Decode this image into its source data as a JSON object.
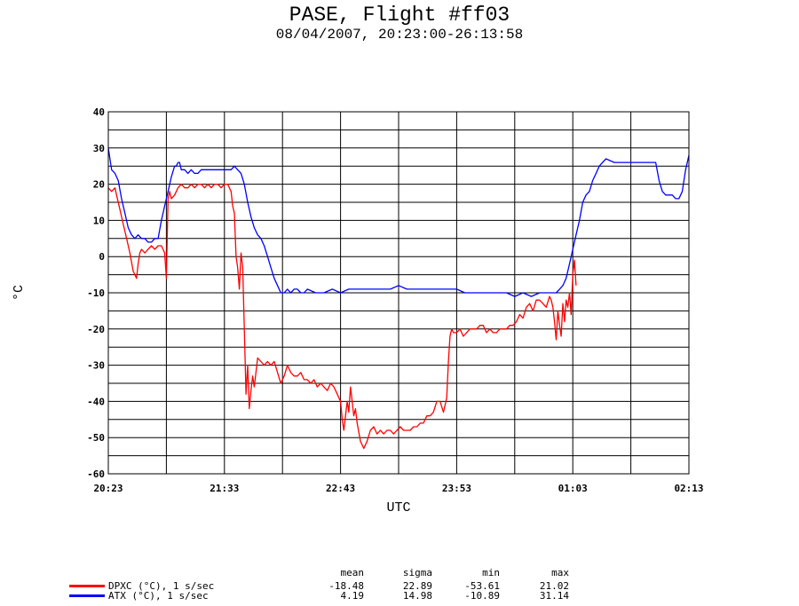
{
  "title": "PASE, Flight #ff03",
  "subtitle": "08/04/2007, 20:23:00-26:13:58",
  "chart_data": {
    "type": "line",
    "xlabel": "UTC",
    "ylabel": "°C",
    "x_tick_labels": [
      "20:23",
      "21:33",
      "22:43",
      "23:53",
      "01:03",
      "02:13"
    ],
    "x_tick_minutes": [
      0,
      70,
      140,
      210,
      280,
      350
    ],
    "xlim": [
      0,
      350
    ],
    "ylim": [
      -60,
      40
    ],
    "y_ticks": [
      40,
      30,
      20,
      10,
      0,
      -10,
      -20,
      -30,
      -40,
      -50,
      -60
    ],
    "grid": true,
    "series": [
      {
        "name": "DPXC (°C), 1 s/sec",
        "color": "#ff0000",
        "x": [
          0,
          2,
          4,
          5,
          7,
          9,
          11,
          13,
          15,
          17,
          18,
          19,
          20,
          22,
          24,
          26,
          28,
          30,
          32,
          33,
          34,
          35,
          36,
          37,
          38,
          40,
          42,
          44,
          46,
          48,
          50,
          52,
          54,
          56,
          58,
          60,
          62,
          64,
          66,
          68,
          70,
          72,
          74,
          75,
          76,
          77,
          78,
          79,
          80,
          81,
          82,
          83,
          84,
          85,
          86,
          87,
          88,
          89,
          90,
          92,
          94,
          96,
          98,
          100,
          102,
          104,
          106,
          108,
          110,
          112,
          114,
          116,
          118,
          120,
          122,
          124,
          126,
          128,
          130,
          132,
          134,
          136,
          138,
          140,
          141,
          142,
          143,
          144,
          145,
          146,
          147,
          148,
          149,
          150,
          152,
          154,
          156,
          158,
          160,
          162,
          164,
          166,
          168,
          170,
          172,
          174,
          176,
          178,
          180,
          182,
          184,
          186,
          188,
          190,
          192,
          194,
          196,
          198,
          200,
          202,
          204,
          205,
          206,
          207,
          208,
          210,
          212,
          214,
          216,
          218,
          220,
          222,
          224,
          226,
          228,
          230,
          232,
          234,
          236,
          238,
          240,
          242,
          244,
          246,
          248,
          250,
          252,
          254,
          256,
          258,
          260,
          262,
          264,
          266,
          267,
          268,
          269,
          270,
          271,
          272,
          273,
          274,
          275,
          276,
          277,
          278,
          279,
          280,
          281,
          282
        ],
        "y": [
          19,
          18,
          19,
          17,
          13,
          9,
          5,
          1,
          -4,
          -6,
          -2,
          1,
          2,
          1,
          2,
          3,
          2,
          3,
          3,
          2,
          1,
          -6,
          16,
          18,
          16,
          17,
          19,
          20,
          19,
          19,
          20,
          19,
          20,
          20,
          19,
          20,
          19,
          20,
          20,
          19,
          20,
          20,
          18,
          14,
          12,
          0,
          -3,
          -9,
          1,
          -3,
          -20,
          -38,
          -30,
          -42,
          -37,
          -33,
          -36,
          -32,
          -28,
          -29,
          -30,
          -29,
          -30,
          -29,
          -32,
          -35,
          -33,
          -30,
          -32,
          -33,
          -33,
          -32,
          -34,
          -34,
          -35,
          -34,
          -36,
          -35,
          -36,
          -37,
          -35,
          -36,
          -38,
          -40,
          -45,
          -48,
          -44,
          -40,
          -43,
          -36,
          -40,
          -44,
          -42,
          -46,
          -51,
          -53,
          -51,
          -48,
          -47,
          -49,
          -48,
          -49,
          -48,
          -48,
          -49,
          -48,
          -47,
          -48,
          -48,
          -48,
          -47,
          -47,
          -46,
          -46,
          -44,
          -44,
          -43,
          -40,
          -40,
          -43,
          -39,
          -29,
          -22,
          -20,
          -21,
          -21,
          -20,
          -22,
          -21,
          -20,
          -20,
          -20,
          -19,
          -19,
          -21,
          -20,
          -21,
          -21,
          -20,
          -20,
          -20,
          -19,
          -19,
          -18,
          -16,
          -17,
          -14,
          -13,
          -15,
          -12,
          -12,
          -13,
          -14,
          -11,
          -12,
          -14,
          -18,
          -23,
          -15,
          -19,
          -22,
          -13,
          -18,
          -12,
          -14,
          -10,
          -16,
          -5,
          -1,
          -8
        ]
      },
      {
        "name": "ATX (°C), 1 s/sec",
        "color": "#0000ff",
        "x": [
          0,
          2,
          4,
          6,
          8,
          10,
          12,
          14,
          16,
          18,
          20,
          22,
          24,
          26,
          28,
          30,
          32,
          34,
          36,
          38,
          40,
          41,
          42,
          43,
          44,
          46,
          48,
          50,
          52,
          54,
          56,
          58,
          60,
          62,
          64,
          66,
          68,
          70,
          72,
          74,
          76,
          78,
          80,
          82,
          84,
          86,
          88,
          90,
          92,
          94,
          96,
          98,
          100,
          102,
          104,
          106,
          108,
          110,
          112,
          114,
          116,
          118,
          120,
          125,
          130,
          135,
          140,
          145,
          150,
          155,
          160,
          165,
          170,
          175,
          180,
          185,
          190,
          195,
          200,
          205,
          210,
          215,
          220,
          225,
          230,
          235,
          240,
          245,
          250,
          255,
          260,
          265,
          270,
          272,
          274,
          276,
          278,
          280,
          282,
          284,
          286,
          288,
          290,
          292,
          294,
          296,
          298,
          300,
          305,
          310,
          315,
          320,
          325,
          330,
          332,
          334,
          336,
          338,
          340,
          342,
          344,
          346,
          348,
          350
        ],
        "y": [
          30,
          24,
          23,
          21,
          16,
          12,
          8,
          6,
          5,
          6,
          5,
          5,
          4,
          4,
          5,
          5,
          10,
          14,
          18,
          22,
          25,
          25,
          26,
          26,
          24,
          24,
          23,
          24,
          23,
          23,
          24,
          24,
          24,
          24,
          24,
          24,
          24,
          24,
          24,
          24,
          25,
          24,
          23,
          20,
          15,
          11,
          8,
          6,
          5,
          3,
          0,
          -3,
          -6,
          -8,
          -10,
          -10,
          -9,
          -10,
          -9,
          -9,
          -10,
          -10,
          -9,
          -10,
          -10,
          -9,
          -10,
          -9,
          -9,
          -9,
          -9,
          -9,
          -9,
          -8,
          -9,
          -9,
          -9,
          -9,
          -9,
          -9,
          -9,
          -10,
          -10,
          -10,
          -10,
          -10,
          -10,
          -11,
          -10,
          -11,
          -10,
          -10,
          -10,
          -9,
          -8,
          -6,
          -2,
          2,
          6,
          10,
          15,
          17,
          18,
          21,
          23,
          25,
          26,
          27,
          26,
          26,
          26,
          26,
          26,
          26,
          21,
          18,
          17,
          17,
          17,
          16,
          16,
          18,
          24,
          28
        ]
      }
    ],
    "stats": {
      "columns": [
        "mean",
        "sigma",
        "min",
        "max"
      ],
      "rows": [
        {
          "name": "DPXC (°C), 1 s/sec",
          "color": "#ff0000",
          "values": [
            "-18.48",
            "22.89",
            "-53.61",
            "21.02"
          ]
        },
        {
          "name": "ATX (°C), 1 s/sec",
          "color": "#0000ff",
          "values": [
            "4.19",
            "14.98",
            "-10.89",
            "31.14"
          ]
        }
      ]
    }
  }
}
